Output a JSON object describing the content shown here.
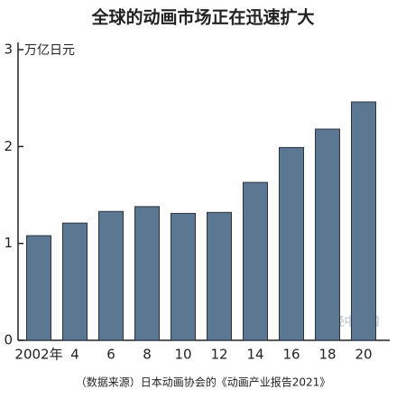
{
  "chart_data": {
    "type": "bar",
    "title": "全球的动画市场正在迅速扩大",
    "y_axis_label": "万亿日元",
    "categories": [
      "2002年",
      "4",
      "6",
      "8",
      "10",
      "12",
      "14",
      "16",
      "18",
      "20"
    ],
    "values": [
      1.08,
      1.21,
      1.33,
      1.38,
      1.31,
      1.32,
      1.63,
      1.99,
      2.18,
      2.46
    ],
    "color": "#5b7791",
    "ylim": [
      0,
      3
    ],
    "yticks": [
      0,
      1,
      2,
      3
    ],
    "grid": false,
    "source": "（数据来源）日本动画协会的《动画产业报告2021》",
    "watermark": "日经中文网"
  }
}
